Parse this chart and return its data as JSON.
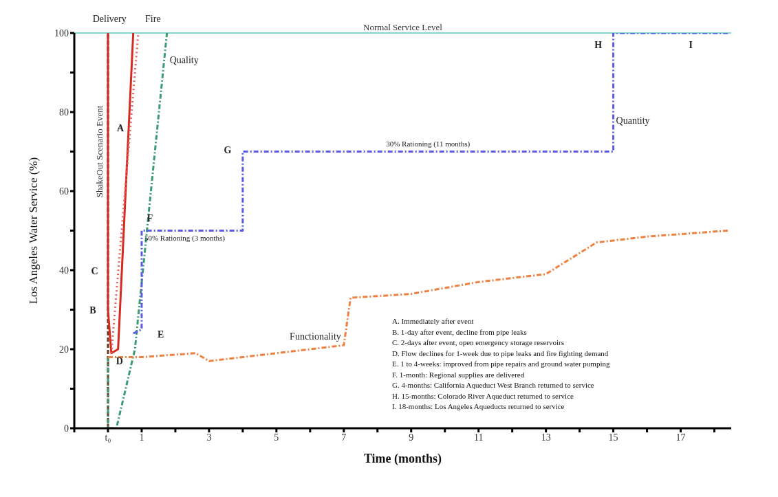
{
  "chart_data": {
    "type": "line",
    "xlabel": "Time (months)",
    "ylabel": "Los Angeles Water Service (%)",
    "xlim": [
      -1,
      18.5
    ],
    "ylim": [
      0,
      100
    ],
    "xticks": [
      {
        "value": -1,
        "label": null
      },
      {
        "value": 0,
        "label": "t₀"
      },
      1,
      {
        "value": 2,
        "label": null
      },
      3,
      {
        "value": 4,
        "label": null
      },
      5,
      {
        "value": 6,
        "label": null
      },
      7,
      {
        "value": 8,
        "label": null
      },
      9,
      {
        "value": 10,
        "label": null
      },
      11,
      {
        "value": 12,
        "label": null
      },
      13,
      {
        "value": 14,
        "label": null
      },
      15,
      {
        "value": 16,
        "label": null
      },
      17,
      {
        "value": 18,
        "label": null
      }
    ],
    "yticks": [
      0,
      {
        "value": 10,
        "label": null
      },
      20,
      {
        "value": 30,
        "label": null
      },
      40,
      {
        "value": 50,
        "label": null
      },
      60,
      {
        "value": 70,
        "label": null
      },
      80,
      {
        "value": 90,
        "label": null
      },
      100
    ],
    "marker": "none",
    "series": [
      {
        "color": "#d42a20",
        "line_style": "solid",
        "x": [
          0,
          0,
          0.1,
          0.3,
          0.75
        ],
        "values": [
          100,
          30,
          19,
          20,
          100
        ]
      },
      {
        "color": "#e86060",
        "line_style": "dotted",
        "x": [
          0.1,
          0.9
        ],
        "values": [
          19,
          100
        ]
      },
      {
        "color": "#3a9a70",
        "line_style": "dashed",
        "x": [
          0,
          0,
          0.25,
          0.8,
          1.75
        ],
        "values": [
          18,
          0,
          0,
          20,
          100
        ]
      },
      {
        "color": "#5a5ae6",
        "line_style": "dashed",
        "x": [
          0.75,
          1,
          1,
          4,
          4,
          15,
          15,
          18.4
        ],
        "values": [
          24,
          25,
          50,
          50,
          70,
          70,
          100,
          100
        ]
      },
      {
        "color": "#f08040",
        "line_style": "dashed",
        "x": [
          0,
          1,
          2.6,
          3,
          4,
          7,
          7.2,
          9,
          11,
          13,
          14.5,
          16,
          18.4
        ],
        "values": [
          18,
          18,
          19,
          17,
          18,
          21,
          33,
          34,
          37,
          39,
          47,
          48.5,
          50
        ]
      }
    ],
    "ref_lines": [
      {
        "axis": "y",
        "value": 100,
        "label": "Normal Service Level",
        "color": "#7fd8d8"
      },
      {
        "axis": "x",
        "value": 0,
        "label": "ShakeOut Scenario Event",
        "color": "#6b3a1a"
      }
    ],
    "annotations": [
      {
        "text": "Delivery",
        "x": 0.75,
        "y": 100
      },
      {
        "text": "Fire",
        "x": 0.9,
        "y": 100
      },
      {
        "text": "Quality",
        "x": 1.75,
        "y": 93
      },
      {
        "text": "Quantity",
        "x": 15,
        "y": 77
      },
      {
        "text": "Functionality",
        "x": 7,
        "y": 21
      },
      {
        "text": "50% Rationing (3 months)",
        "x": 1,
        "y": 50
      },
      {
        "text": "30% Rationing (11 months)",
        "x": 9.5,
        "y": 70
      },
      {
        "text": "A",
        "x": 0,
        "y": 76
      },
      {
        "text": "B",
        "x": 0,
        "y": 30
      },
      {
        "text": "C",
        "x": 0.3,
        "y": 39
      },
      {
        "text": "D",
        "x": 0.1,
        "y": 19
      },
      {
        "text": "E",
        "x": 0.75,
        "y": 24
      },
      {
        "text": "F",
        "x": 1,
        "y": 50
      },
      {
        "text": "G",
        "x": 4,
        "y": 70
      },
      {
        "text": "H",
        "x": 15,
        "y": 100
      },
      {
        "text": "I",
        "x": 17.3,
        "y": 100
      },
      "A. Immediately after event",
      "B. 1-day after event, decline from pipe leaks",
      "C. 2-days after event, open emergency storage reservoirs",
      "D. Flow declines for 1-week due to pipe leaks and fire fighting demand",
      "E. 1 to 4-weeks: improved from pipe repairs and ground water pumping",
      "F. 1-month: Regional supplies are delivered",
      "G. 4-months: California Aqueduct West Branch returned to service",
      "H. 15-months: Colorado River Aqueduct returned to service",
      "I. 18-months: Los Angeles Aqueducts returned to service"
    ]
  }
}
